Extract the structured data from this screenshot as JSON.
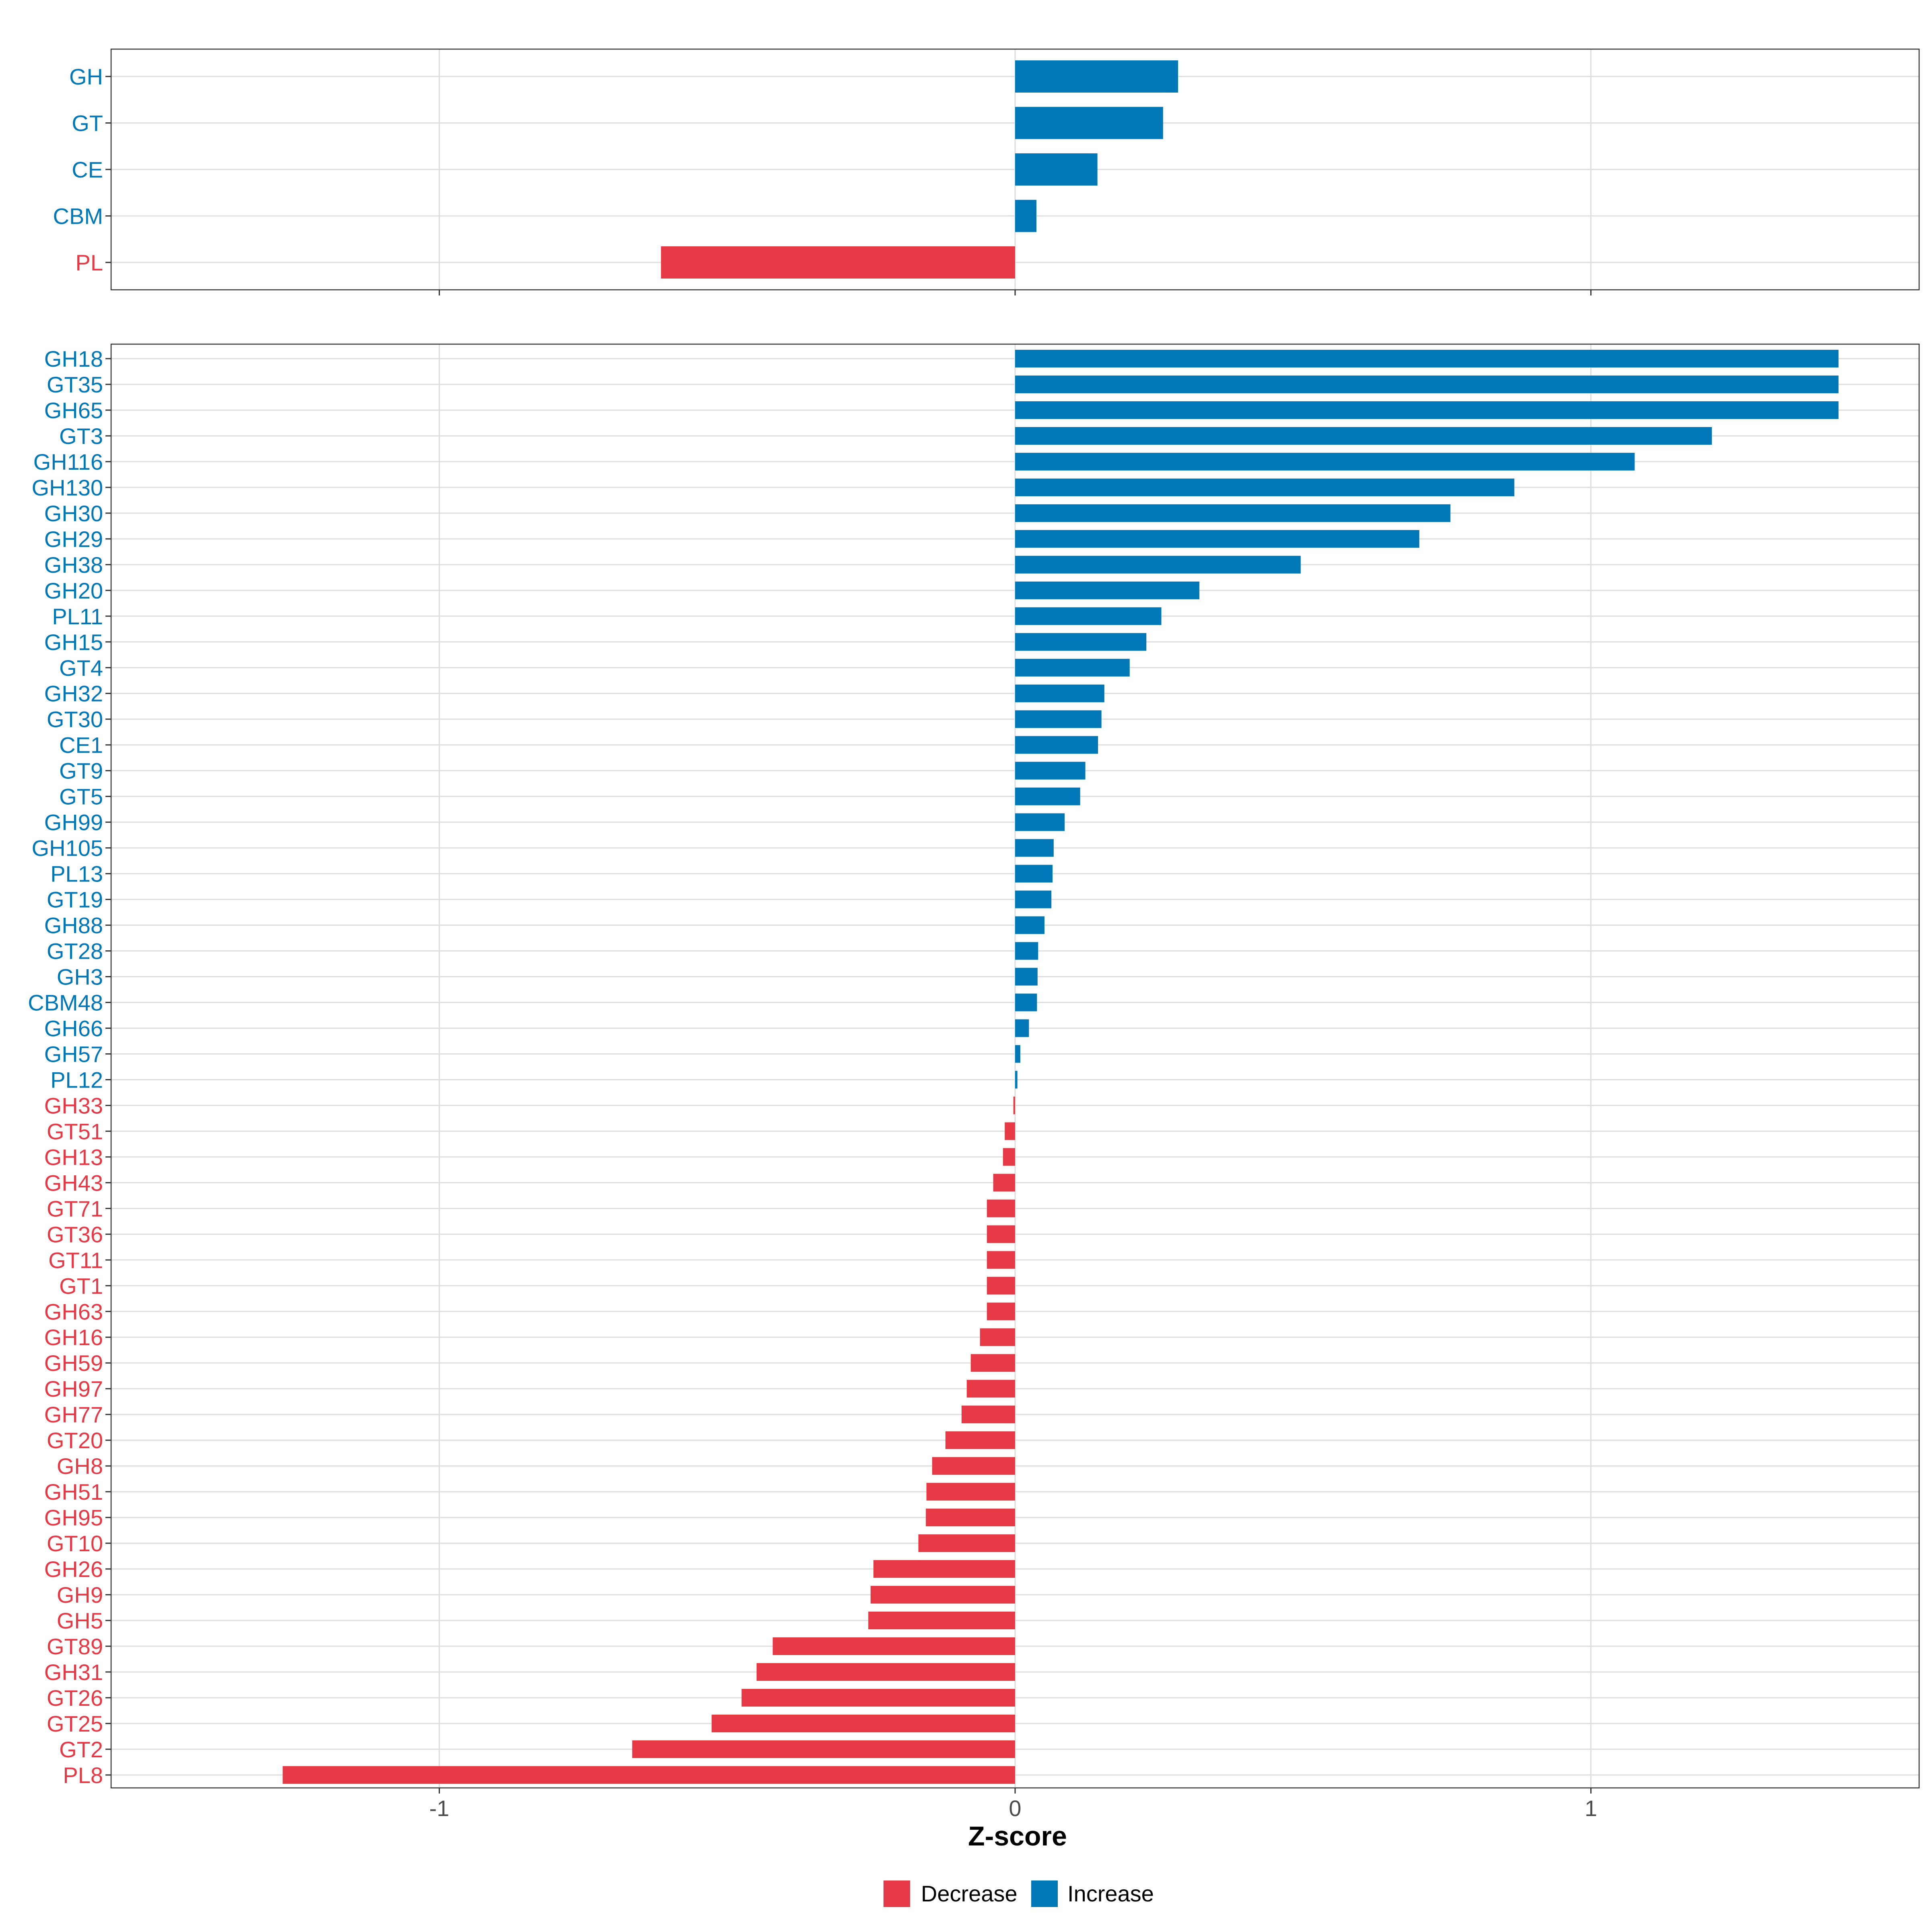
{
  "chart_data": {
    "type": "bar",
    "orientation": "horizontal",
    "xlabel": "Z-score",
    "xlim": [
      -1.57,
      1.57
    ],
    "xticks": [
      -1,
      0,
      1
    ],
    "xtick_labels": [
      "-1",
      "0",
      "1"
    ],
    "grid": true,
    "legend": {
      "placement": "bottom",
      "entries": [
        {
          "label": "Decrease",
          "color": "#E63946"
        },
        {
          "label": "Increase",
          "color": "#0077B6"
        }
      ]
    },
    "colors": {
      "decrease": "#E63946",
      "increase": "#0077B6"
    },
    "panels": [
      {
        "name": "class-level",
        "categories": [
          "GH",
          "GT",
          "CE",
          "CBM",
          "PL"
        ],
        "values": [
          0.283,
          0.257,
          0.143,
          0.037,
          -0.615
        ]
      },
      {
        "name": "family-level",
        "categories": [
          "GH18",
          "GT35",
          "GH65",
          "GT3",
          "GH116",
          "GH130",
          "GH30",
          "GH29",
          "GH38",
          "GH20",
          "PL11",
          "GH15",
          "GT4",
          "GH32",
          "GT30",
          "CE1",
          "GT9",
          "GT5",
          "GH99",
          "GH105",
          "PL13",
          "GT19",
          "GH88",
          "GT28",
          "GH3",
          "CBM48",
          "GH66",
          "GH57",
          "PL12",
          "GH33",
          "GT51",
          "GH13",
          "GH43",
          "GT71",
          "GT36",
          "GT11",
          "GT1",
          "GH63",
          "GH16",
          "GH59",
          "GH97",
          "GH77",
          "GT20",
          "GH8",
          "GH51",
          "GH95",
          "GT10",
          "GH26",
          "GH9",
          "GH5",
          "GT89",
          "GH31",
          "GT26",
          "GT25",
          "GT2",
          "PL8"
        ],
        "values": [
          1.43,
          1.43,
          1.43,
          1.21,
          1.076,
          0.867,
          0.756,
          0.702,
          0.496,
          0.32,
          0.254,
          0.228,
          0.199,
          0.155,
          0.15,
          0.144,
          0.122,
          0.113,
          0.086,
          0.067,
          0.065,
          0.063,
          0.051,
          0.04,
          0.039,
          0.038,
          0.024,
          0.009,
          0.004,
          -0.003,
          -0.018,
          -0.021,
          -0.038,
          -0.049,
          -0.049,
          -0.049,
          -0.049,
          -0.049,
          -0.061,
          -0.077,
          -0.084,
          -0.093,
          -0.121,
          -0.144,
          -0.154,
          -0.155,
          -0.168,
          -0.246,
          -0.251,
          -0.255,
          -0.421,
          -0.449,
          -0.475,
          -0.527,
          -0.665,
          -1.272
        ]
      }
    ]
  }
}
